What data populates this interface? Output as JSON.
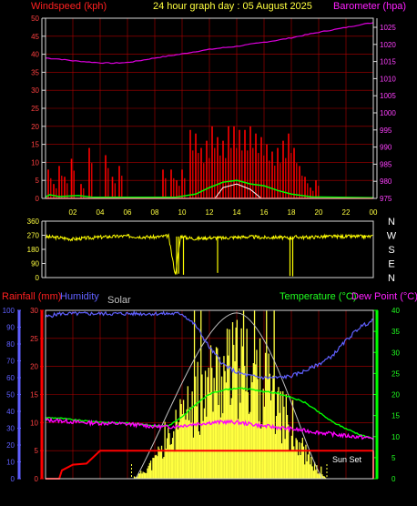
{
  "title": "24 hour graph day : 05 August 2025",
  "colors": {
    "background": "#000000",
    "grid": "#b00000",
    "frame": "#d8d8d8",
    "windspeed": "#ff0000",
    "wind_avg": "#00ff00",
    "wind_bright": "#ffffff",
    "barometer": "#dd00dd",
    "direction": "#ffff00",
    "rainfall": "#ff0000",
    "humidity": "#6060ff",
    "solar": "#ffff40",
    "solar_max": "#c0c0c0",
    "temperature": "#00ff00",
    "dewpoint": "#ff00ff",
    "sunset": "#ffff40"
  },
  "chart_data": [
    {
      "type": "bar",
      "id": "wind_baro",
      "left_label": "Windspeed (kph)",
      "right_label": "Barometer (hpa)",
      "left_ticks": [
        "50",
        "45",
        "40",
        "35",
        "30",
        "25",
        "20",
        "15",
        "10",
        "5",
        "0"
      ],
      "right_ticks": [
        "1025",
        "1020",
        "1015",
        "1010",
        "1005",
        "1000",
        "995",
        "990",
        "985",
        "980",
        "975"
      ],
      "x_ticks": [
        "02",
        "04",
        "06",
        "08",
        "10",
        "12",
        "14",
        "16",
        "18",
        "20",
        "22",
        "00"
      ],
      "ylim_left": [
        0,
        50
      ],
      "ylim_right": [
        975,
        1027.5
      ],
      "series": [
        {
          "name": "Windspeed",
          "type": "bar",
          "x": [
            0.2,
            0.6,
            1.0,
            1.4,
            1.9,
            2.6,
            3.2,
            4.4,
            4.9,
            5.4,
            8.6,
            9.2,
            9.6,
            10.0,
            10.6,
            11.0,
            11.4,
            11.8,
            12.2,
            12.6,
            13.0,
            13.4,
            13.8,
            14.2,
            14.6,
            15.0,
            15.4,
            15.8,
            16.2,
            16.6,
            17.0,
            17.4,
            17.8,
            18.2,
            18.6,
            19.0,
            19.4,
            19.8
          ],
          "y": [
            8,
            4,
            9,
            6,
            11,
            4,
            14,
            12,
            6,
            9,
            8,
            8,
            5,
            8,
            19,
            18,
            14,
            16,
            20,
            17,
            16,
            20,
            20,
            19,
            19,
            20,
            18,
            17,
            15,
            13,
            14,
            16,
            18,
            14,
            9,
            6,
            3,
            5
          ]
        },
        {
          "name": "Barometer",
          "type": "line",
          "x": [
            0,
            1,
            2,
            3,
            4,
            5,
            6,
            7,
            8,
            9,
            10,
            11,
            12,
            13,
            14,
            15,
            16,
            17,
            18,
            19,
            20,
            21,
            22,
            23,
            24
          ],
          "y": [
            1015.9,
            1015.6,
            1015.1,
            1014.8,
            1014.5,
            1014.4,
            1014.6,
            1015.2,
            1015.9,
            1016.5,
            1017.1,
            1017.8,
            1018.4,
            1018.9,
            1019.3,
            1019.9,
            1020.5,
            1021.1,
            1021.8,
            1022.6,
            1023.4,
            1024.1,
            1024.8,
            1025.6,
            1026.2
          ]
        }
      ]
    },
    {
      "type": "line",
      "id": "direction",
      "left_ticks": [
        "360",
        "270",
        "180",
        "90",
        "0"
      ],
      "right_ticks": [
        "N",
        "W",
        "S",
        "E",
        "N"
      ],
      "ylim": [
        0,
        360
      ],
      "series": [
        {
          "name": "Wind direction",
          "x": [
            0,
            1,
            2,
            3,
            4,
            5,
            6,
            7,
            8,
            9,
            9.5,
            9.9,
            10.3,
            11,
            12,
            13,
            14,
            15,
            16,
            17,
            17.9,
            18.4,
            19,
            20.4,
            24
          ],
          "y": [
            260,
            255,
            245,
            252,
            258,
            262,
            265,
            260,
            258,
            266,
            20,
            266,
            255,
            248,
            255,
            252,
            258,
            260,
            255,
            258,
            250,
            260,
            256,
            262,
            262
          ]
        }
      ]
    },
    {
      "type": "line",
      "id": "climate",
      "left_label_1": "Rainfall (mm)",
      "left_label_2": "Humidity",
      "solar_label": "Solar",
      "right_label_1": "Temperature (°C)",
      "right_label_2": "Dew Point (°C)",
      "humidity_ticks": [
        "100",
        "90",
        "80",
        "70",
        "60",
        "50",
        "40",
        "30",
        "20",
        "10",
        "0"
      ],
      "rain_ticks": [
        "30",
        "25",
        "20",
        "15",
        "10",
        "5",
        "0"
      ],
      "temp_ticks": [
        "40",
        "35",
        "30",
        "25",
        "20",
        "15",
        "10",
        "5",
        "0"
      ],
      "ylim_humidity": [
        0,
        100
      ],
      "ylim_rain": [
        0,
        30
      ],
      "ylim_temp": [
        0,
        40
      ],
      "sunset_label": "Sun Set",
      "series": [
        {
          "name": "Humidity",
          "x": [
            0,
            1,
            2,
            3,
            4,
            5,
            6,
            7,
            8,
            9,
            10,
            11,
            12,
            13,
            14,
            15,
            16,
            17,
            18,
            19,
            20,
            21,
            22,
            23,
            24
          ],
          "y": [
            96,
            98,
            98,
            98,
            98,
            98,
            98,
            98,
            98,
            98,
            98,
            91,
            78,
            68,
            63,
            61,
            60,
            60,
            61,
            64,
            68,
            73,
            82,
            90,
            94
          ]
        },
        {
          "name": "Rainfall",
          "x": [
            0,
            1,
            1.2,
            2,
            3,
            4,
            5,
            8,
            12,
            16,
            20,
            21,
            22,
            23,
            24
          ],
          "y": [
            0,
            0,
            1.5,
            2.5,
            2.7,
            5,
            5,
            5,
            5,
            5,
            5,
            5,
            5,
            5,
            5
          ]
        },
        {
          "name": "Solar",
          "x": [
            6.5,
            7,
            8,
            9,
            10,
            11,
            12,
            13,
            14,
            15,
            16,
            17,
            18,
            19,
            20,
            20.5
          ],
          "y": [
            1,
            5,
            15,
            32,
            50,
            68,
            84,
            92,
            96,
            92,
            82,
            66,
            44,
            22,
            6,
            1
          ]
        },
        {
          "name": "Temperature",
          "x": [
            0,
            1,
            2,
            3,
            4,
            5,
            6,
            7,
            8,
            9,
            10,
            11,
            12,
            13,
            14,
            15,
            16,
            17,
            18,
            19,
            20,
            21,
            22,
            23,
            24
          ],
          "y": [
            14.5,
            14.4,
            14.0,
            13.7,
            13.5,
            13.3,
            13.2,
            12.9,
            12.6,
            12.6,
            14.6,
            17.7,
            20.1,
            21.1,
            21.5,
            21.3,
            20.7,
            20.3,
            19.3,
            18.1,
            15.8,
            13.5,
            11.9,
            10.5,
            9.5
          ]
        },
        {
          "name": "Dew Point",
          "x": [
            0,
            1,
            2,
            3,
            4,
            5,
            6,
            7,
            8,
            9,
            10,
            11,
            12,
            13,
            14,
            15,
            16,
            17,
            18,
            19,
            20,
            21,
            22,
            23,
            24
          ],
          "y": [
            13.9,
            13.8,
            13.5,
            13.3,
            13.2,
            13.1,
            13.0,
            12.7,
            12.4,
            12.3,
            12.6,
            13.0,
            13.3,
            13.5,
            13.4,
            13.0,
            12.5,
            12.2,
            11.8,
            11.4,
            11.0,
            10.6,
            10.2,
            9.9,
            9.6
          ]
        }
      ]
    }
  ]
}
